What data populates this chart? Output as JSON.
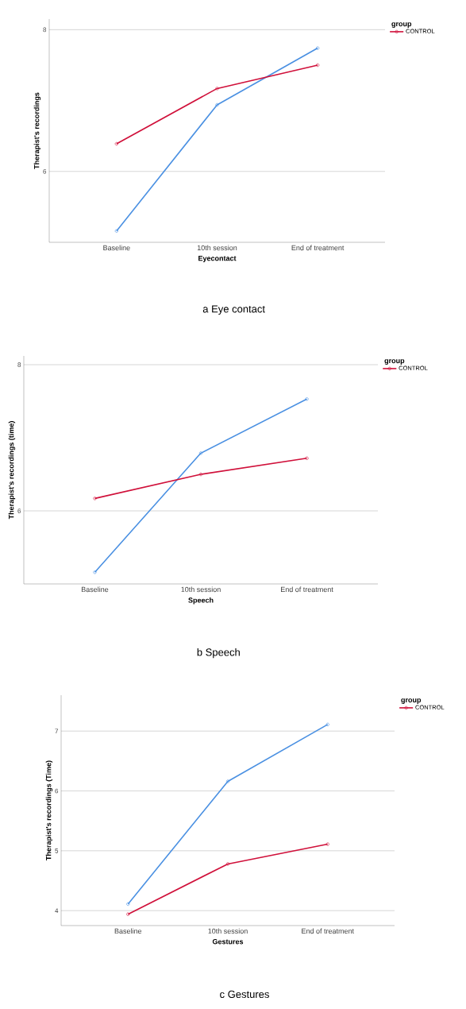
{
  "chart_data": [
    {
      "type": "line",
      "categories": [
        "Baseline",
        "10th session",
        "End of treatment"
      ],
      "xlabel": "Eyecontact",
      "ylabel": "Therapist's recordings",
      "legend_title": "group",
      "annotations": [
        "a  Eye contact"
      ],
      "series": [
        {
          "color": "#4a90e2",
          "values": [
            5.16,
            6.94,
            7.74
          ]
        },
        {
          "name": "CONTROL",
          "color": "#d0103a",
          "values": [
            6.39,
            7.17,
            7.5
          ]
        }
      ],
      "ylim": [
        5.0,
        8.15
      ],
      "yticks": [
        6,
        8
      ],
      "grid": "y",
      "legend": "top right",
      "marker": "circle",
      "line_style": "solid"
    },
    {
      "type": "line",
      "categories": [
        "Baseline",
        "10th session",
        "End of treatment"
      ],
      "xlabel": "Speech",
      "ylabel": "Therapist's recordings (time)",
      "legend_title": "group",
      "annotations": [
        "b  Speech"
      ],
      "series": [
        {
          "color": "#4a90e2",
          "values": [
            5.16,
            6.79,
            7.53
          ]
        },
        {
          "name": "CONTROL",
          "color": "#d0103a",
          "values": [
            6.17,
            6.5,
            6.72
          ]
        }
      ],
      "ylim": [
        5.0,
        8.12
      ],
      "yticks": [
        6,
        8
      ],
      "grid": "y",
      "legend": "top right",
      "marker": "circle",
      "line_style": "solid"
    },
    {
      "type": "line",
      "categories": [
        "Baseline",
        "10th session",
        "End of treatment"
      ],
      "xlabel": "Gestures",
      "ylabel": "Therapist's recordings (Time)",
      "legend_title": "group",
      "annotations": [
        "c  Gestures"
      ],
      "series": [
        {
          "color": "#4a90e2",
          "values": [
            4.11,
            6.16,
            7.11
          ]
        },
        {
          "name": "CONTROL",
          "color": "#d0103a",
          "values": [
            3.94,
            4.78,
            5.11
          ]
        }
      ],
      "ylim": [
        3.75,
        7.6
      ],
      "yticks": [
        4,
        5,
        6,
        7
      ],
      "grid": "y",
      "legend": "top right",
      "marker": "circle",
      "line_style": "solid"
    }
  ]
}
